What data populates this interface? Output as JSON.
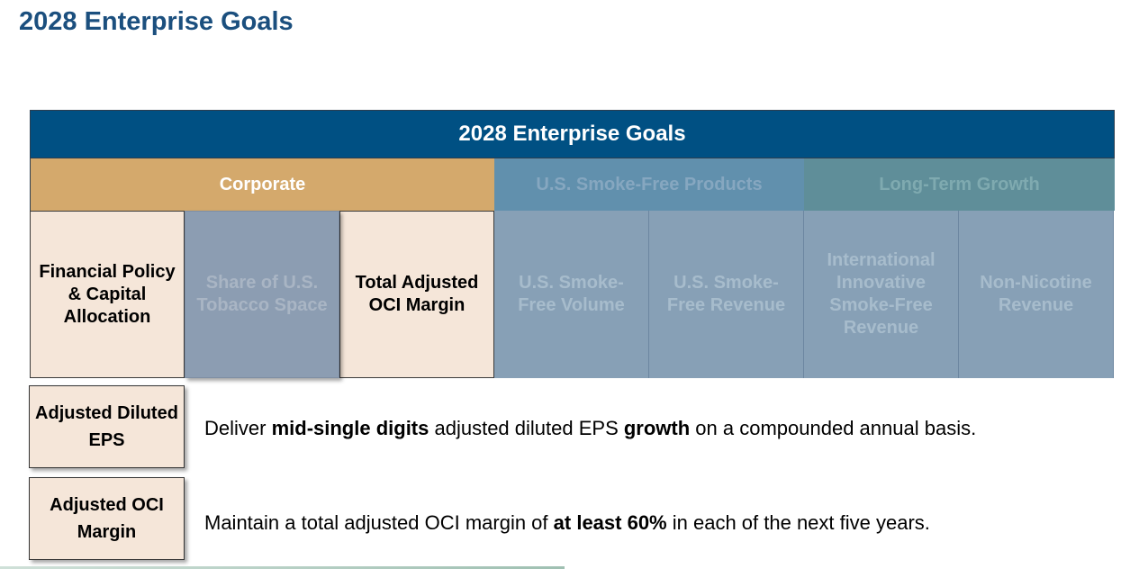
{
  "slide": {
    "title": "2028 Enterprise Goals"
  },
  "table": {
    "header": "2028 Enterprise Goals",
    "categories": {
      "corporate": "Corporate",
      "smoke_free": "U.S. Smoke-Free Products",
      "growth": "Long-Term Growth"
    },
    "goals": [
      "Financial Policy & Capital Allocation",
      "Share of U.S. Tobacco Space",
      "Total Adjusted OCI Margin",
      "U.S. Smoke-Free Volume",
      "U.S. Smoke-Free Revenue",
      "International Innovative Smoke-Free Revenue",
      "Non-Nicotine Revenue"
    ]
  },
  "metrics": [
    {
      "label": "Adjusted Diluted EPS",
      "text_1": "Deliver ",
      "bold_1": "mid-single digits",
      "text_2": " adjusted diluted EPS ",
      "bold_2": "growth",
      "text_3": " on a compounded annual basis."
    },
    {
      "label": "Adjusted OCI Margin",
      "text_1": "Maintain a total adjusted OCI margin of ",
      "bold_1": "at least 60%",
      "text_2": " in each of the next five years."
    }
  ]
}
